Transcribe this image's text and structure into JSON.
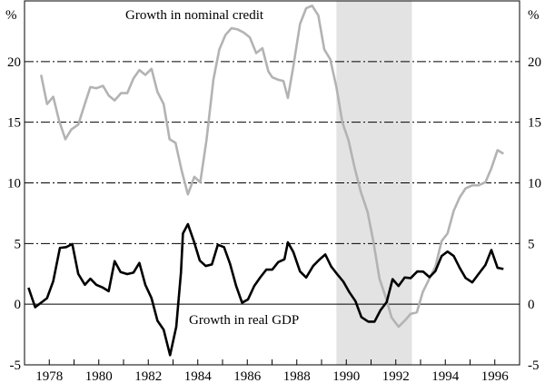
{
  "chart_data": {
    "type": "line",
    "title": "",
    "xlabel": "",
    "ylabel": "%",
    "ylabel_right": "%",
    "xlim": [
      1977,
      1997
    ],
    "ylim": [
      -5,
      25
    ],
    "yticks": [
      -5,
      0,
      5,
      10,
      15,
      20
    ],
    "xtick_labels": [
      "1978",
      "1980",
      "1982",
      "1984",
      "1986",
      "1988",
      "1990",
      "1992",
      "1994",
      "1996"
    ],
    "grid": "horizontal dash-dot at 5, 10, 15, 20; solid zero line",
    "shaded_region": [
      1989.6,
      1992.65
    ],
    "colors": {
      "credit": "#b3b3b3",
      "gdp": "#000000",
      "shade": "#e3e3e3"
    },
    "series": [
      {
        "name": "Growth in nominal credit",
        "label": "Growth in nominal credit",
        "points": [
          [
            1977.67,
            18.9
          ],
          [
            1977.91,
            16.5
          ],
          [
            1978.16,
            17.1
          ],
          [
            1978.4,
            15.1
          ],
          [
            1978.65,
            13.6
          ],
          [
            1978.89,
            14.4
          ],
          [
            1979.17,
            14.8
          ],
          [
            1979.42,
            16.4
          ],
          [
            1979.66,
            17.9
          ],
          [
            1979.9,
            17.8
          ],
          [
            1980.17,
            18.0
          ],
          [
            1980.4,
            17.2
          ],
          [
            1980.64,
            16.8
          ],
          [
            1980.9,
            17.4
          ],
          [
            1981.15,
            17.4
          ],
          [
            1981.4,
            18.6
          ],
          [
            1981.64,
            19.3
          ],
          [
            1981.88,
            18.9
          ],
          [
            1982.13,
            19.4
          ],
          [
            1982.37,
            17.5
          ],
          [
            1982.62,
            16.5
          ],
          [
            1982.86,
            13.6
          ],
          [
            1983.1,
            13.3
          ],
          [
            1983.35,
            11.0
          ],
          [
            1983.6,
            9.05
          ],
          [
            1983.86,
            10.5
          ],
          [
            1984.1,
            10.05
          ],
          [
            1984.35,
            13.5
          ],
          [
            1984.63,
            18.5
          ],
          [
            1984.87,
            21.0
          ],
          [
            1985.12,
            22.2
          ],
          [
            1985.36,
            22.75
          ],
          [
            1985.61,
            22.65
          ],
          [
            1985.85,
            22.4
          ],
          [
            1986.1,
            22.0
          ],
          [
            1986.36,
            20.7
          ],
          [
            1986.61,
            21.1
          ],
          [
            1986.85,
            19.2
          ],
          [
            1987.01,
            18.7
          ],
          [
            1987.25,
            18.5
          ],
          [
            1987.46,
            18.4
          ],
          [
            1987.64,
            17.0
          ],
          [
            1987.86,
            19.6
          ],
          [
            1988.13,
            23.1
          ],
          [
            1988.38,
            24.4
          ],
          [
            1988.62,
            24.6
          ],
          [
            1988.87,
            23.8
          ],
          [
            1989.11,
            21.0
          ],
          [
            1989.35,
            20.2
          ],
          [
            1989.6,
            17.9
          ],
          [
            1989.84,
            15.0
          ],
          [
            1990.09,
            13.5
          ],
          [
            1990.33,
            11.3
          ],
          [
            1990.58,
            9.3
          ],
          [
            1990.86,
            7.6
          ],
          [
            1991.1,
            5.1
          ],
          [
            1991.34,
            2.1
          ],
          [
            1991.59,
            0.6
          ],
          [
            1991.83,
            -1.1
          ],
          [
            1992.11,
            -1.86
          ],
          [
            1992.36,
            -1.36
          ],
          [
            1992.6,
            -0.8
          ],
          [
            1992.85,
            -0.67
          ],
          [
            1993.09,
            1.0
          ],
          [
            1993.33,
            2.0
          ],
          [
            1993.6,
            3.1
          ],
          [
            1993.85,
            5.2
          ],
          [
            1994.09,
            5.83
          ],
          [
            1994.34,
            7.7
          ],
          [
            1994.58,
            8.8
          ],
          [
            1994.82,
            9.55
          ],
          [
            1995.09,
            9.8
          ],
          [
            1995.34,
            9.8
          ],
          [
            1995.62,
            10.05
          ],
          [
            1995.86,
            11.2
          ],
          [
            1996.11,
            12.7
          ],
          [
            1996.35,
            12.4
          ]
        ]
      },
      {
        "name": "Growth in real GDP",
        "label": "Growth in real GDP",
        "points": [
          [
            1977.16,
            1.36
          ],
          [
            1977.43,
            -0.25
          ],
          [
            1977.91,
            0.5
          ],
          [
            1978.16,
            1.9
          ],
          [
            1978.43,
            4.64
          ],
          [
            1978.68,
            4.7
          ],
          [
            1978.93,
            4.96
          ],
          [
            1979.17,
            2.5
          ],
          [
            1979.44,
            1.6
          ],
          [
            1979.66,
            2.1
          ],
          [
            1979.9,
            1.6
          ],
          [
            1980.17,
            1.36
          ],
          [
            1980.4,
            1.07
          ],
          [
            1980.64,
            3.55
          ],
          [
            1980.88,
            2.65
          ],
          [
            1981.15,
            2.48
          ],
          [
            1981.4,
            2.6
          ],
          [
            1981.64,
            3.4
          ],
          [
            1981.88,
            1.6
          ],
          [
            1982.13,
            0.5
          ],
          [
            1982.37,
            -1.36
          ],
          [
            1982.62,
            -2.1
          ],
          [
            1982.88,
            -4.2
          ],
          [
            1983.13,
            -1.86
          ],
          [
            1983.32,
            2.6
          ],
          [
            1983.4,
            5.83
          ],
          [
            1983.6,
            6.6
          ],
          [
            1983.84,
            5.2
          ],
          [
            1984.08,
            3.6
          ],
          [
            1984.32,
            3.15
          ],
          [
            1984.57,
            3.28
          ],
          [
            1984.81,
            4.9
          ],
          [
            1985.06,
            4.7
          ],
          [
            1985.3,
            3.35
          ],
          [
            1985.55,
            1.5
          ],
          [
            1985.79,
            0.12
          ],
          [
            1986.03,
            0.4
          ],
          [
            1986.28,
            1.5
          ],
          [
            1986.52,
            2.2
          ],
          [
            1986.77,
            2.85
          ],
          [
            1987.01,
            2.85
          ],
          [
            1987.25,
            3.47
          ],
          [
            1987.5,
            3.7
          ],
          [
            1987.64,
            5.1
          ],
          [
            1987.86,
            4.3
          ],
          [
            1988.13,
            2.7
          ],
          [
            1988.38,
            2.2
          ],
          [
            1988.66,
            3.15
          ],
          [
            1988.9,
            3.65
          ],
          [
            1989.15,
            4.1
          ],
          [
            1989.39,
            3.1
          ],
          [
            1989.63,
            2.48
          ],
          [
            1989.88,
            1.86
          ],
          [
            1990.12,
            1.0
          ],
          [
            1990.37,
            0.25
          ],
          [
            1990.61,
            -1.07
          ],
          [
            1990.89,
            -1.44
          ],
          [
            1991.14,
            -1.44
          ],
          [
            1991.38,
            -0.5
          ],
          [
            1991.63,
            0.17
          ],
          [
            1991.87,
            2.06
          ],
          [
            1992.11,
            1.5
          ],
          [
            1992.36,
            2.2
          ],
          [
            1992.6,
            2.15
          ],
          [
            1992.87,
            2.7
          ],
          [
            1993.11,
            2.68
          ],
          [
            1993.36,
            2.23
          ],
          [
            1993.6,
            2.73
          ],
          [
            1993.85,
            3.97
          ],
          [
            1994.09,
            4.34
          ],
          [
            1994.34,
            3.97
          ],
          [
            1994.58,
            3.0
          ],
          [
            1994.82,
            2.16
          ],
          [
            1995.09,
            1.8
          ],
          [
            1995.34,
            2.48
          ],
          [
            1995.62,
            3.23
          ],
          [
            1995.86,
            4.47
          ],
          [
            1996.11,
            3.0
          ],
          [
            1996.35,
            2.9
          ]
        ]
      }
    ]
  }
}
